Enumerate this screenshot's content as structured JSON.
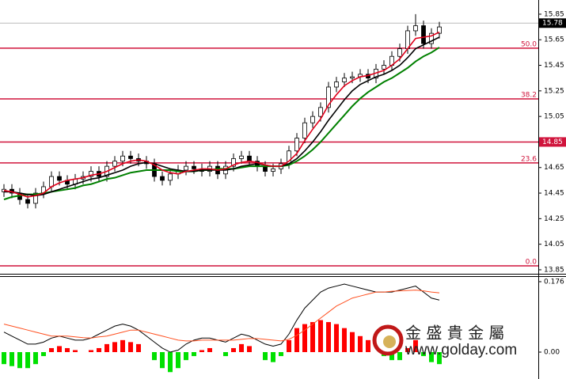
{
  "chart_data": [
    {
      "type": "candlestick",
      "ylim": [
        13.825,
        15.961
      ],
      "yticks": [
        15.85,
        15.65,
        15.45,
        15.25,
        15.05,
        14.65,
        14.45,
        14.25,
        14.05,
        13.85
      ],
      "up_color": "#ffffff",
      "down_color": "#000000",
      "candles": {
        "open": [
          14.46,
          14.48,
          14.45,
          14.4,
          14.37,
          14.45,
          14.5,
          14.58,
          14.55,
          14.52,
          14.56,
          14.58,
          14.62,
          14.58,
          14.66,
          14.7,
          14.74,
          14.72,
          14.7,
          14.68,
          14.58,
          14.55,
          14.6,
          14.63,
          14.66,
          14.64,
          14.62,
          14.66,
          14.6,
          14.66,
          14.72,
          14.74,
          14.7,
          14.66,
          14.62,
          14.64,
          14.68,
          14.78,
          14.88,
          15.0,
          15.05,
          15.12,
          15.28,
          15.32,
          15.35,
          15.36,
          15.38,
          15.35,
          15.42,
          15.45,
          15.52,
          15.58,
          15.72,
          15.76,
          15.62,
          15.7
        ],
        "high": [
          14.52,
          14.52,
          14.49,
          14.44,
          14.49,
          14.54,
          14.62,
          14.62,
          14.59,
          14.6,
          14.62,
          14.66,
          14.66,
          14.7,
          14.74,
          14.78,
          14.78,
          14.76,
          14.74,
          14.72,
          14.62,
          14.64,
          14.67,
          14.7,
          14.7,
          14.68,
          14.7,
          14.7,
          14.7,
          14.76,
          14.78,
          14.78,
          14.74,
          14.7,
          14.68,
          14.72,
          14.82,
          14.92,
          15.04,
          15.09,
          15.16,
          15.32,
          15.36,
          15.39,
          15.4,
          15.42,
          15.42,
          15.46,
          15.49,
          15.56,
          15.62,
          15.76,
          15.85,
          15.8,
          15.74,
          15.79
        ],
        "low": [
          14.42,
          14.41,
          14.36,
          14.33,
          14.33,
          14.41,
          14.46,
          14.51,
          14.48,
          14.48,
          14.52,
          14.54,
          14.54,
          14.54,
          14.62,
          14.66,
          14.68,
          14.66,
          14.64,
          14.54,
          14.51,
          14.51,
          14.56,
          14.59,
          14.6,
          14.58,
          14.58,
          14.56,
          14.56,
          14.62,
          14.68,
          14.66,
          14.62,
          14.58,
          14.58,
          14.6,
          14.64,
          14.74,
          14.84,
          14.96,
          15.01,
          15.08,
          15.24,
          15.28,
          15.31,
          15.32,
          15.31,
          15.31,
          15.38,
          15.41,
          15.48,
          15.54,
          15.68,
          15.58,
          15.58,
          15.66
        ],
        "close": [
          14.48,
          14.45,
          14.4,
          14.37,
          14.45,
          14.5,
          14.58,
          14.55,
          14.52,
          14.56,
          14.58,
          14.62,
          14.58,
          14.66,
          14.7,
          14.74,
          14.72,
          14.7,
          14.68,
          14.58,
          14.55,
          14.6,
          14.63,
          14.66,
          14.64,
          14.62,
          14.66,
          14.6,
          14.66,
          14.72,
          14.74,
          14.7,
          14.66,
          14.62,
          14.64,
          14.68,
          14.78,
          14.88,
          15.0,
          15.05,
          15.12,
          15.28,
          15.32,
          15.35,
          15.36,
          15.38,
          15.35,
          15.42,
          15.45,
          15.52,
          15.58,
          15.72,
          15.76,
          15.62,
          15.7,
          15.75
        ]
      },
      "ma_lines": [
        {
          "color": "#008000",
          "values": [
            14.4,
            14.42,
            14.43,
            14.44,
            14.44,
            14.45,
            14.46,
            14.47,
            14.48,
            14.49,
            14.51,
            14.52,
            14.54,
            14.56,
            14.57,
            14.59,
            14.61,
            14.62,
            14.63,
            14.63,
            14.63,
            14.63,
            14.62,
            14.62,
            14.62,
            14.63,
            14.63,
            14.64,
            14.64,
            14.64,
            14.65,
            14.66,
            14.66,
            14.66,
            14.66,
            14.66,
            14.67,
            14.7,
            14.74,
            14.79,
            14.85,
            14.92,
            14.99,
            15.06,
            15.13,
            15.19,
            15.24,
            15.28,
            15.32,
            15.35,
            15.39,
            15.43,
            15.48,
            15.52,
            15.55,
            15.59
          ]
        },
        {
          "color": "#000000",
          "values": [
            14.46,
            14.46,
            14.45,
            14.44,
            14.43,
            14.44,
            14.46,
            14.48,
            14.5,
            14.52,
            14.54,
            14.56,
            14.57,
            14.59,
            14.61,
            14.63,
            14.66,
            14.68,
            14.69,
            14.68,
            14.66,
            14.64,
            14.63,
            14.62,
            14.62,
            14.63,
            14.63,
            14.63,
            14.63,
            14.64,
            14.66,
            14.67,
            14.68,
            14.67,
            14.66,
            14.66,
            14.68,
            14.72,
            14.78,
            14.85,
            14.93,
            15.02,
            15.1,
            15.18,
            15.25,
            15.3,
            15.33,
            15.36,
            15.38,
            15.41,
            15.45,
            15.51,
            15.58,
            15.61,
            15.64,
            15.67
          ]
        },
        {
          "color": "#e0001b",
          "values": [
            14.47,
            14.46,
            14.44,
            14.42,
            14.43,
            14.45,
            14.5,
            14.53,
            14.55,
            14.56,
            14.57,
            14.59,
            14.6,
            14.62,
            14.65,
            14.68,
            14.7,
            14.71,
            14.7,
            14.67,
            14.63,
            14.61,
            14.6,
            14.62,
            14.63,
            14.64,
            14.64,
            14.63,
            14.64,
            14.67,
            14.69,
            14.7,
            14.69,
            14.67,
            14.66,
            14.66,
            14.7,
            14.76,
            14.86,
            14.95,
            15.03,
            15.14,
            15.22,
            15.29,
            15.33,
            15.36,
            15.37,
            15.39,
            15.41,
            15.45,
            15.5,
            15.58,
            15.66,
            15.67,
            15.68,
            15.71
          ]
        }
      ],
      "hlines": [
        {
          "value": 15.584,
          "label": "50.0"
        },
        {
          "value": 15.187,
          "label": "38.2"
        },
        {
          "value": 14.85
        },
        {
          "value": 14.686,
          "label": "23.6"
        },
        {
          "value": 13.881,
          "label": "0.0"
        }
      ],
      "line_color": "#d0143c",
      "last_price": 15.78
    },
    {
      "type": "macd",
      "y2lim": [
        -0.0672,
        0.1918
      ],
      "y2ticks": [
        0.176,
        {
          "value": 0,
          "label": "0.00"
        }
      ],
      "pos_color": "#ff0000",
      "neg_color": "#00e000",
      "histogram": [
        -0.03,
        -0.035,
        -0.04,
        -0.04,
        -0.03,
        -0.01,
        0.01,
        0.015,
        0.01,
        0.005,
        0.0,
        0.005,
        0.01,
        0.02,
        0.025,
        0.03,
        0.025,
        0.02,
        0.0,
        -0.02,
        -0.04,
        -0.05,
        -0.04,
        -0.02,
        -0.01,
        0.005,
        0.01,
        0.0,
        -0.01,
        0.01,
        0.02,
        0.015,
        0.0,
        -0.02,
        -0.025,
        -0.01,
        0.03,
        0.06,
        0.07,
        0.075,
        0.08,
        0.075,
        0.07,
        0.06,
        0.05,
        0.04,
        0.03,
        0.0,
        -0.01,
        -0.02,
        -0.02,
        0.01,
        0.03,
        -0.01,
        -0.025,
        -0.03
      ],
      "lines": [
        {
          "color": "#000000",
          "values": [
            0.05,
            0.04,
            0.03,
            0.02,
            0.02,
            0.025,
            0.035,
            0.04,
            0.035,
            0.03,
            0.03,
            0.035,
            0.045,
            0.055,
            0.065,
            0.07,
            0.065,
            0.055,
            0.04,
            0.025,
            0.01,
            0.0,
            0.005,
            0.02,
            0.03,
            0.035,
            0.035,
            0.03,
            0.025,
            0.035,
            0.045,
            0.04,
            0.03,
            0.02,
            0.015,
            0.02,
            0.045,
            0.08,
            0.11,
            0.13,
            0.15,
            0.16,
            0.165,
            0.17,
            0.165,
            0.16,
            0.155,
            0.15,
            0.15,
            0.15,
            0.155,
            0.16,
            0.165,
            0.15,
            0.135,
            0.13
          ]
        },
        {
          "color": "#ff5020",
          "values": [
            0.07,
            0.065,
            0.06,
            0.055,
            0.05,
            0.045,
            0.04,
            0.04,
            0.04,
            0.038,
            0.036,
            0.035,
            0.038,
            0.04,
            0.045,
            0.05,
            0.055,
            0.055,
            0.05,
            0.045,
            0.04,
            0.035,
            0.03,
            0.028,
            0.028,
            0.03,
            0.03,
            0.03,
            0.03,
            0.03,
            0.032,
            0.034,
            0.034,
            0.032,
            0.03,
            0.028,
            0.032,
            0.042,
            0.055,
            0.07,
            0.085,
            0.1,
            0.115,
            0.125,
            0.135,
            0.14,
            0.145,
            0.15,
            0.15,
            0.152,
            0.153,
            0.154,
            0.155,
            0.153,
            0.15,
            0.148
          ]
        }
      ]
    }
  ],
  "watermark": {
    "brand": "金 盛 貴 金 屬",
    "url": "www.golday.com"
  }
}
